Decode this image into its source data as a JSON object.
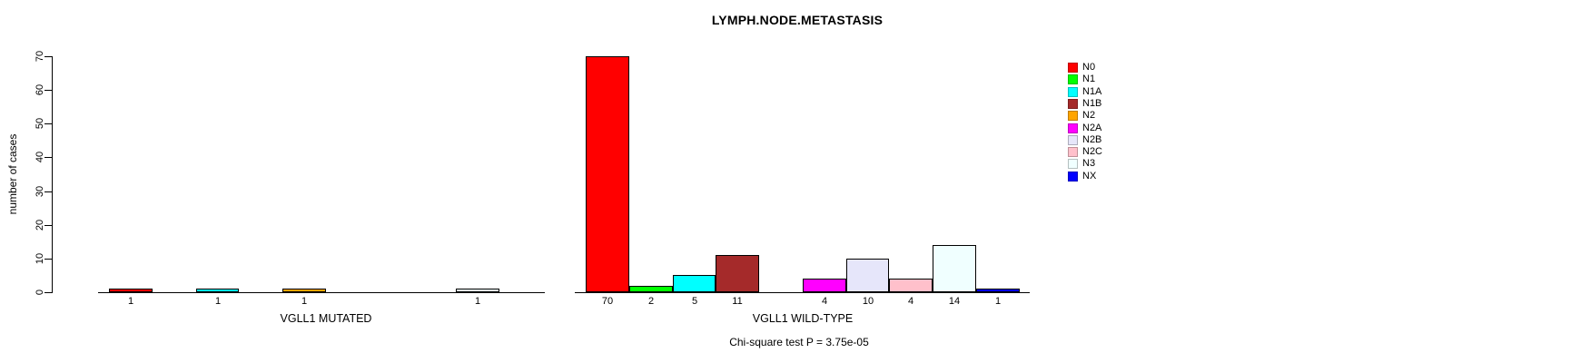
{
  "chart_data": {
    "type": "bar",
    "title": "LYMPH.NODE.METASTASIS",
    "ylabel": "number of cases",
    "xlabel": "",
    "ylim": [
      0,
      70
    ],
    "yticks": [
      0,
      10,
      20,
      30,
      40,
      50,
      60,
      70
    ],
    "grid": false,
    "legend_position": "right-outside",
    "categories": [
      "N0",
      "N1",
      "N1A",
      "N1B",
      "N2",
      "N2A",
      "N2B",
      "N2C",
      "N3",
      "NX"
    ],
    "legend": [
      {
        "label": "N0",
        "color": "#FF0000"
      },
      {
        "label": "N1",
        "color": "#00FF00"
      },
      {
        "label": "N1A",
        "color": "#00FFFF"
      },
      {
        "label": "N1B",
        "color": "#A52A2A"
      },
      {
        "label": "N2",
        "color": "#FFA500"
      },
      {
        "label": "N2A",
        "color": "#FF00FF"
      },
      {
        "label": "N2B",
        "color": "#E6E6FA"
      },
      {
        "label": "N2C",
        "color": "#FFC0CB"
      },
      {
        "label": "N3",
        "color": "#F0FFFF"
      },
      {
        "label": "NX",
        "color": "#0000FF"
      }
    ],
    "series": [
      {
        "name": "VGLL1 MUTATED",
        "values": [
          1,
          0,
          1,
          0,
          1,
          0,
          0,
          0,
          1,
          0
        ]
      },
      {
        "name": "VGLL1 WILD-TYPE",
        "values": [
          70,
          2,
          5,
          11,
          0,
          4,
          10,
          4,
          14,
          1
        ]
      }
    ],
    "bar_value_labels": "shown-under-nonzero-bars",
    "annotation": "Chi-square test P = 3.75e-05"
  },
  "colors": {
    "axis": "#000000",
    "background": "#ffffff"
  }
}
